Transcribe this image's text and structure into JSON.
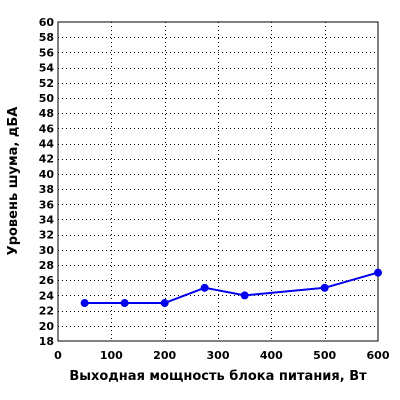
{
  "chart_data": {
    "type": "line",
    "xlabel": "Выходная мощность блока питания, Вт",
    "ylabel": "Уровень шума, дБА",
    "xlim": [
      0,
      600
    ],
    "ylim": [
      18,
      60
    ],
    "xticks": [
      0,
      100,
      200,
      300,
      400,
      500,
      600
    ],
    "yticks": [
      18,
      20,
      22,
      24,
      26,
      28,
      30,
      32,
      34,
      36,
      38,
      40,
      42,
      44,
      46,
      48,
      50,
      52,
      54,
      56,
      58,
      60
    ],
    "grid": true,
    "series": [
      {
        "x": [
          50,
          125,
          200,
          275,
          350,
          500,
          600
        ],
        "y": [
          23,
          23,
          23,
          25,
          24,
          25,
          27
        ],
        "color": "#0000ee"
      }
    ]
  }
}
